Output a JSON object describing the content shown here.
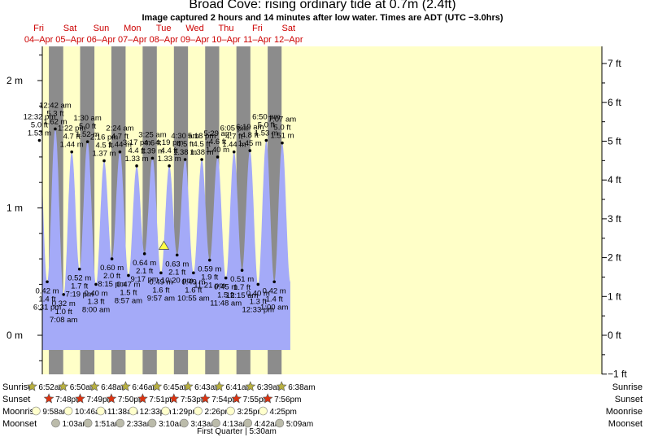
{
  "title": "Broad Cove: rising  ordinary tide at 0.7m (2.4ft)",
  "subtitle": "Image captured 2 hours and 14 minutes after low water. Times are ADT (UTC −3.0hrs)",
  "colors": {
    "tide_fill": "#a4aaf8",
    "day_bg": "#ffffc8",
    "night_bg": "#8c8c8c",
    "day_label": "#cc0000",
    "sunrise_icon": "#b8b040",
    "sunset_icon": "#dd3311",
    "moonrise_icon": "#ffffcc",
    "moonset_icon": "#bbbbaa",
    "marker": "#ffff44"
  },
  "days": [
    {
      "name": "Fri",
      "date": "04–Apr"
    },
    {
      "name": "Sat",
      "date": "05–Apr"
    },
    {
      "name": "Sun",
      "date": "06–Apr"
    },
    {
      "name": "Mon",
      "date": "07–Apr"
    },
    {
      "name": "Tue",
      "date": "08–Apr"
    },
    {
      "name": "Wed",
      "date": "09–Apr"
    },
    {
      "name": "Thu",
      "date": "10–Apr"
    },
    {
      "name": "Fri",
      "date": "11–Apr"
    },
    {
      "name": "Sat",
      "date": "12–Apr"
    }
  ],
  "rows": {
    "sunrise": "Sunrise",
    "sunset": "Sunset",
    "moonrise": "Moonrise",
    "moonset": "Moonset"
  },
  "moon_phase": "First Quarter | 5:30am",
  "chart_data": {
    "type": "area",
    "time_zone": "ADT (UTC −3.0hrs)",
    "x_range": [
      "2025-04-04 00:00",
      "2025-04-12 16:00"
    ],
    "y_range_m": [
      -0.3,
      2.25
    ],
    "left_axis": {
      "unit": "m",
      "ticks": [
        "0 m",
        "1 m",
        "2 m"
      ],
      "values": [
        0,
        1,
        2
      ]
    },
    "right_axis": {
      "unit": "ft",
      "ticks": [
        "−1 ft",
        "0 ft",
        "1 ft",
        "2 ft",
        "3 ft",
        "4 ft",
        "5 ft",
        "6 ft",
        "7 ft"
      ],
      "values": [
        -1,
        0,
        1,
        2,
        3,
        4,
        5,
        6,
        7
      ]
    },
    "current": {
      "time": "2025-04-08 12:11",
      "height_m": 0.7,
      "height_ft": 2.4,
      "state": "rising"
    },
    "extremes": [
      {
        "type": "high",
        "time": "12:32 pm",
        "ft": "5.0 ft",
        "m": "1.53 m",
        "t": "2025-04-04 12:32",
        "value_m": 1.53
      },
      {
        "type": "low",
        "time": "6:31 pm",
        "ft": "1.4 ft",
        "m": "0.42 m",
        "t": "2025-04-04 18:31",
        "value_m": 0.42
      },
      {
        "type": "high",
        "time": "12:42 am",
        "ft": "5.3 ft",
        "m": "1.62 m",
        "t": "2025-04-05 00:42",
        "value_m": 1.62
      },
      {
        "type": "low",
        "time": "7:08 am",
        "ft": "1.0 ft",
        "m": "0.32 m",
        "t": "2025-04-05 07:08",
        "value_m": 0.32
      },
      {
        "type": "high",
        "time": "1:22 pm",
        "ft": "4.7 ft",
        "m": "1.44 m",
        "t": "2025-04-05 13:22",
        "value_m": 1.44
      },
      {
        "type": "low",
        "time": "7:19 pm",
        "ft": "1.7 ft",
        "m": "0.52 m",
        "t": "2025-04-05 19:19",
        "value_m": 0.52
      },
      {
        "type": "high",
        "time": "1:30 am",
        "ft": "5.0 ft",
        "m": "1.52 m",
        "t": "2025-04-06 01:30",
        "value_m": 1.52
      },
      {
        "type": "low",
        "time": "8:00 am",
        "ft": "1.3 ft",
        "m": "0.40 m",
        "t": "2025-04-06 08:00",
        "value_m": 0.4
      },
      {
        "type": "high",
        "time": "2:16 pm",
        "ft": "4.5 ft",
        "m": "1.37 m",
        "t": "2025-04-06 14:16",
        "value_m": 1.37
      },
      {
        "type": "low",
        "time": "8:15 pm",
        "ft": "2.0 ft",
        "m": "0.60 m",
        "t": "2025-04-06 20:15",
        "value_m": 0.6
      },
      {
        "type": "high",
        "time": "2:24 am",
        "ft": "4.7 ft",
        "m": "1.44 m",
        "t": "2025-04-07 02:24",
        "value_m": 1.44
      },
      {
        "type": "low",
        "time": "8:57 am",
        "ft": "1.5 ft",
        "m": "0.47 m",
        "t": "2025-04-07 08:57",
        "value_m": 0.47
      },
      {
        "type": "high",
        "time": "3:17 pm",
        "ft": "4.4 ft",
        "m": "1.33 m",
        "t": "2025-04-07 15:17",
        "value_m": 1.33
      },
      {
        "type": "low",
        "time": "9:17 pm",
        "ft": "2.1 ft",
        "m": "0.64 m",
        "t": "2025-04-07 21:17",
        "value_m": 0.64
      },
      {
        "type": "high",
        "time": "3:25 am",
        "ft": "4.6 ft",
        "m": "1.39 m",
        "t": "2025-04-08 03:25",
        "value_m": 1.39
      },
      {
        "type": "low",
        "time": "9:57 am",
        "ft": "1.6 ft",
        "m": "0.49 m",
        "t": "2025-04-08 09:57",
        "value_m": 0.49
      },
      {
        "type": "high",
        "time": "4:19 pm",
        "ft": "4.4 ft",
        "m": "1.33 m",
        "t": "2025-04-08 16:19",
        "value_m": 1.33
      },
      {
        "type": "low",
        "time": "10:20 pm",
        "ft": "2.1 ft",
        "m": "0.63 m",
        "t": "2025-04-08 22:20",
        "value_m": 0.63
      },
      {
        "type": "high",
        "time": "4:30 am",
        "ft": "4.5 ft",
        "m": "1.38 m",
        "t": "2025-04-09 04:30",
        "value_m": 1.38
      },
      {
        "type": "low",
        "time": "10:55 am",
        "ft": "1.6 ft",
        "m": "0.49 m",
        "t": "2025-04-09 10:55",
        "value_m": 0.49
      },
      {
        "type": "high",
        "time": "5:18 pm",
        "ft": "4.5 ft",
        "m": "1.38 m",
        "t": "2025-04-09 17:18",
        "value_m": 1.38
      },
      {
        "type": "low",
        "time": "11:21 pm",
        "ft": "1.9 ft",
        "m": "0.59 m",
        "t": "2025-04-09 23:21",
        "value_m": 0.59
      },
      {
        "type": "high",
        "time": "5:29 am",
        "ft": "4.6 ft",
        "m": "1.40 m",
        "t": "2025-04-10 05:29",
        "value_m": 1.4
      },
      {
        "type": "low",
        "time": "11:48 am",
        "ft": "1.5 ft",
        "m": "0.45 m",
        "t": "2025-04-10 11:48",
        "value_m": 0.45
      },
      {
        "type": "high",
        "time": "6:05 pm",
        "ft": "4.7 ft",
        "m": "1.44 m",
        "t": "2025-04-10 18:05",
        "value_m": 1.44
      },
      {
        "type": "low",
        "time": "12:15 am",
        "ft": "1.7 ft",
        "m": "0.51 m",
        "t": "2025-04-11 00:15",
        "value_m": 0.51
      },
      {
        "type": "high",
        "time": "6:19 am",
        "ft": "4.8 ft",
        "m": "1.45 m",
        "t": "2025-04-11 06:19",
        "value_m": 1.45
      },
      {
        "type": "low",
        "time": "12:33 pm",
        "ft": "1.3 ft",
        "m": "0.40 m",
        "t": "2025-04-11 12:33",
        "value_m": 0.4
      },
      {
        "type": "high",
        "time": "6:50 pm",
        "ft": "5.0 ft",
        "m": "1.53 m",
        "t": "2025-04-11 18:50",
        "value_m": 1.53
      },
      {
        "type": "low",
        "time": "1:00 am",
        "ft": "1.4 ft",
        "m": "0.42 m",
        "t": "2025-04-12 01:00",
        "value_m": 0.42
      },
      {
        "type": "high",
        "time": "7:07 am",
        "ft": "5.0 ft",
        "m": "1.51 m",
        "t": "2025-04-12 07:07",
        "value_m": 1.51
      }
    ],
    "sunrise": [
      {
        "label": "6:52am",
        "t": "2025-04-04 06:52"
      },
      {
        "label": "6:50am",
        "t": "2025-04-05 06:50"
      },
      {
        "label": "6:48am",
        "t": "2025-04-06 06:48"
      },
      {
        "label": "6:46am",
        "t": "2025-04-07 06:46"
      },
      {
        "label": "6:45am",
        "t": "2025-04-08 06:45"
      },
      {
        "label": "6:43am",
        "t": "2025-04-09 06:43"
      },
      {
        "label": "6:41am",
        "t": "2025-04-10 06:41"
      },
      {
        "label": "6:39am",
        "t": "2025-04-11 06:39"
      },
      {
        "label": "6:38am",
        "t": "2025-04-12 06:38"
      }
    ],
    "sunset": [
      {
        "label": "7:48pm",
        "t": "2025-04-04 19:48"
      },
      {
        "label": "7:49pm",
        "t": "2025-04-05 19:49"
      },
      {
        "label": "7:50pm",
        "t": "2025-04-06 19:50"
      },
      {
        "label": "7:51pm",
        "t": "2025-04-07 19:51"
      },
      {
        "label": "7:53pm",
        "t": "2025-04-08 19:53"
      },
      {
        "label": "7:54pm",
        "t": "2025-04-09 19:54"
      },
      {
        "label": "7:55pm",
        "t": "2025-04-10 19:55"
      },
      {
        "label": "7:56pm",
        "t": "2025-04-11 19:56"
      }
    ],
    "moonrise": [
      {
        "label": "9:58am",
        "t": "2025-04-04 09:58"
      },
      {
        "label": "10:46am",
        "t": "2025-04-05 10:46"
      },
      {
        "label": "11:38am",
        "t": "2025-04-06 11:38"
      },
      {
        "label": "12:33pm",
        "t": "2025-04-07 12:33"
      },
      {
        "label": "1:29pm",
        "t": "2025-04-08 13:29"
      },
      {
        "label": "2:26pm",
        "t": "2025-04-09 14:26"
      },
      {
        "label": "3:25pm",
        "t": "2025-04-10 15:25"
      },
      {
        "label": "4:25pm",
        "t": "2025-04-11 16:25"
      }
    ],
    "moonset": [
      {
        "label": "1:03am",
        "t": "2025-04-05 01:03"
      },
      {
        "label": "1:51am",
        "t": "2025-04-06 01:51"
      },
      {
        "label": "2:33am",
        "t": "2025-04-07 02:33"
      },
      {
        "label": "3:10am",
        "t": "2025-04-08 03:10"
      },
      {
        "label": "3:43am",
        "t": "2025-04-09 03:43"
      },
      {
        "label": "4:13am",
        "t": "2025-04-10 04:13"
      },
      {
        "label": "4:42am",
        "t": "2025-04-11 04:42"
      },
      {
        "label": "5:09am",
        "t": "2025-04-12 05:09"
      }
    ]
  }
}
